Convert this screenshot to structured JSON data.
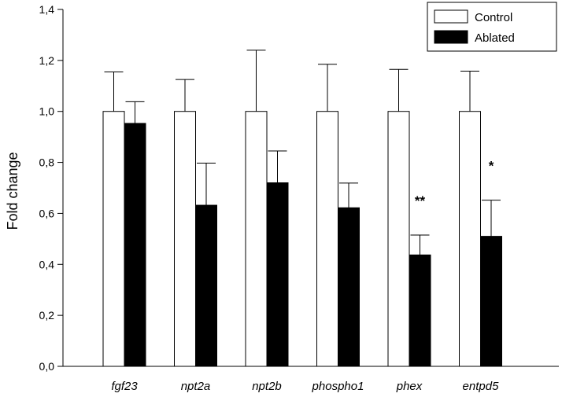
{
  "chart_data": {
    "type": "bar",
    "title": "",
    "xlabel": "",
    "ylabel": "Fold change",
    "ylim": [
      0,
      1.4
    ],
    "yticks": [
      0.0,
      0.2,
      0.4,
      0.6,
      0.8,
      1.0,
      1.2,
      1.4
    ],
    "ytick_labels": [
      "0,0",
      "0,2",
      "0,4",
      "0,6",
      "0,8",
      "1,0",
      "1,2",
      "1,4"
    ],
    "categories": [
      "fgf23",
      "npt2a",
      "npt2b",
      "phospho1",
      "phex",
      "entpd5"
    ],
    "series": [
      {
        "name": "Control",
        "fill": "#ffffff",
        "values": [
          1.0,
          1.0,
          1.0,
          1.0,
          1.0,
          1.0
        ],
        "errors": [
          0.155,
          0.125,
          0.24,
          0.185,
          0.165,
          0.158
        ]
      },
      {
        "name": "Ablated",
        "fill": "#000000",
        "values": [
          0.953,
          0.632,
          0.72,
          0.622,
          0.437,
          0.51
        ],
        "errors": [
          0.085,
          0.165,
          0.125,
          0.097,
          0.078,
          0.142
        ]
      }
    ],
    "annotations": [
      {
        "category": "phex",
        "series": "Ablated",
        "text": "**"
      },
      {
        "category": "entpd5",
        "series": "Ablated",
        "text": "*"
      }
    ],
    "legend": {
      "position": "top-right",
      "entries": [
        "Control",
        "Ablated"
      ]
    },
    "grid": false
  }
}
